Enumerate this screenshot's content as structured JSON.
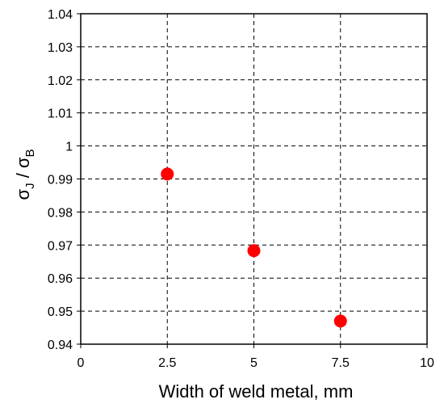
{
  "chart_data": {
    "type": "scatter",
    "title": "",
    "xlabel": "Width of weld metal, mm",
    "ylabel": {
      "sigma1": "σ",
      "sub1": "J",
      "sep": " / ",
      "sigma2": "σ",
      "sub2": "B"
    },
    "xlim": [
      0,
      10
    ],
    "ylim": [
      0.94,
      1.04
    ],
    "xticks": [
      0,
      2.5,
      5,
      7.5,
      10
    ],
    "xtick_labels": [
      "0",
      "2.5",
      "5",
      "7.5",
      "10"
    ],
    "yticks": [
      0.94,
      0.95,
      0.96,
      0.97,
      0.98,
      0.99,
      1.0,
      1.01,
      1.02,
      1.03,
      1.04
    ],
    "ytick_labels": [
      "0.94",
      "0.95",
      "0.96",
      "0.97",
      "0.98",
      "0.99",
      "1",
      "1.01",
      "1.02",
      "1.03",
      "1.04"
    ],
    "grid": true,
    "legend": "none",
    "series": [
      {
        "color": "#ff0000",
        "x": [
          2.5,
          5,
          7.5
        ],
        "y": [
          0.9915,
          0.9683,
          0.947
        ]
      }
    ]
  }
}
